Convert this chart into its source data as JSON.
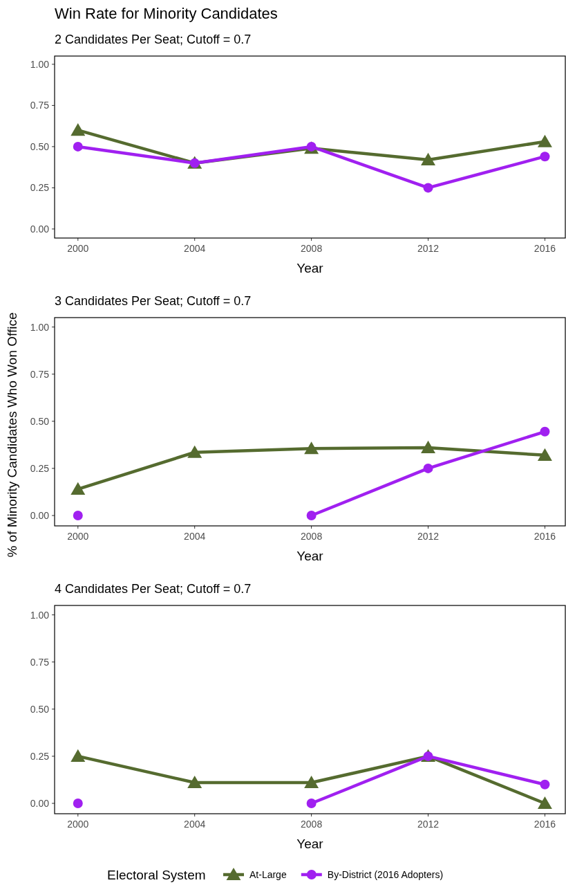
{
  "chart_data": [
    {
      "type": "line",
      "title": "Win Rate for Minority Candidates",
      "subtitle": "2 Candidates Per Seat; Cutoff = 0.7",
      "xlabel": "Year",
      "x": [
        2000,
        2004,
        2008,
        2012,
        2016
      ],
      "xlim": [
        1999.2,
        2016.7
      ],
      "xticks": [
        2000,
        2004,
        2008,
        2012,
        2016
      ],
      "ylim": [
        -0.055,
        1.05
      ],
      "yticks": [
        {
          "value": 0,
          "label": "0.00"
        },
        {
          "value": 0.25,
          "label": "0.25"
        },
        {
          "value": 0.5,
          "label": "0.50"
        },
        {
          "value": 0.75,
          "label": "0.75"
        },
        {
          "value": 1,
          "label": "1.00"
        }
      ],
      "series": [
        {
          "color": "#556b2f",
          "marker": "triangle",
          "values": [
            0.6,
            0.4,
            0.49,
            0.42,
            0.53
          ]
        },
        {
          "color": "#a020f0",
          "marker": "circle",
          "values": [
            0.5,
            0.4,
            0.5,
            0.25,
            0.44
          ]
        }
      ]
    },
    {
      "type": "line",
      "subtitle": "3 Candidates Per Seat; Cutoff = 0.7",
      "xlabel": "Year",
      "ylabel": "% of Minority Candidates Who Won Office",
      "x": [
        2000,
        2004,
        2008,
        2012,
        2016
      ],
      "xlim": [
        1999.2,
        2016.7
      ],
      "xticks": [
        2000,
        2004,
        2008,
        2012,
        2016
      ],
      "ylim": [
        -0.055,
        1.05
      ],
      "yticks": [
        {
          "value": 0,
          "label": "0.00"
        },
        {
          "value": 0.25,
          "label": "0.25"
        },
        {
          "value": 0.5,
          "label": "0.50"
        },
        {
          "value": 0.75,
          "label": "0.75"
        },
        {
          "value": 1,
          "label": "1.00"
        }
      ],
      "series": [
        {
          "color": "#556b2f",
          "marker": "triangle",
          "values": [
            0.14,
            0.335,
            0.355,
            0.36,
            0.32
          ]
        },
        {
          "color": "#a020f0",
          "marker": "circle",
          "values": [
            0.0,
            null,
            0.0,
            0.25,
            0.445
          ]
        }
      ]
    },
    {
      "type": "line",
      "subtitle": "4 Candidates Per Seat; Cutoff = 0.7",
      "xlabel": "Year",
      "legend": "bottom",
      "legend_title": "Electoral System",
      "x": [
        2000,
        2004,
        2008,
        2012,
        2016
      ],
      "xlim": [
        1999.2,
        2016.7
      ],
      "xticks": [
        2000,
        2004,
        2008,
        2012,
        2016
      ],
      "ylim": [
        -0.055,
        1.05
      ],
      "yticks": [
        {
          "value": 0,
          "label": "0.00"
        },
        {
          "value": 0.25,
          "label": "0.25"
        },
        {
          "value": 0.5,
          "label": "0.50"
        },
        {
          "value": 0.75,
          "label": "0.75"
        },
        {
          "value": 1,
          "label": "1.00"
        }
      ],
      "series": [
        {
          "name": "At-Large",
          "color": "#556b2f",
          "marker": "triangle",
          "values": [
            0.25,
            0.11,
            0.11,
            0.25,
            0.0
          ]
        },
        {
          "name": "By-District (2016 Adopters)",
          "color": "#a020f0",
          "marker": "circle",
          "values": [
            0.0,
            null,
            0.0,
            0.25,
            0.1
          ]
        }
      ]
    }
  ]
}
